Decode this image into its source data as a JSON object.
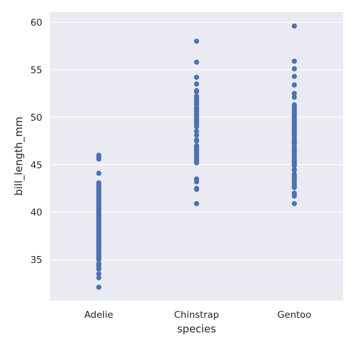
{
  "chart_data": {
    "type": "scatter",
    "xlabel": "species",
    "ylabel": "bill_length_mm",
    "categories": [
      "Adelie",
      "Chinstrap",
      "Gentoo"
    ],
    "ylim": [
      30.7,
      61.1
    ],
    "yticks": [
      35,
      40,
      45,
      50,
      55,
      60
    ],
    "grid": true,
    "point_color": "#4c72b0",
    "plot_background": "#eaeaf2",
    "series": [
      {
        "category": "Adelie",
        "values": [
          32.1,
          33.1,
          33.5,
          34.0,
          34.1,
          34.4,
          34.5,
          34.6,
          35.0,
          35.1,
          35.2,
          35.3,
          35.5,
          35.6,
          35.7,
          35.9,
          36.0,
          36.2,
          36.3,
          36.4,
          36.5,
          36.6,
          36.7,
          36.8,
          36.9,
          37.0,
          37.2,
          37.3,
          37.5,
          37.6,
          37.7,
          37.8,
          37.9,
          38.1,
          38.2,
          38.3,
          38.5,
          38.6,
          38.7,
          38.8,
          38.9,
          39.0,
          39.1,
          39.2,
          39.3,
          39.5,
          39.6,
          39.7,
          39.8,
          40.0,
          40.2,
          40.3,
          40.5,
          40.6,
          40.7,
          40.8,
          40.9,
          41.0,
          41.1,
          41.3,
          41.4,
          41.5,
          41.6,
          41.8,
          42.0,
          42.1,
          42.2,
          42.3,
          42.5,
          42.7,
          42.8,
          42.9,
          43.1,
          44.1,
          45.6,
          45.8,
          46.0
        ]
      },
      {
        "category": "Chinstrap",
        "values": [
          40.9,
          42.4,
          42.5,
          43.2,
          43.5,
          45.2,
          45.4,
          45.5,
          45.6,
          45.7,
          45.9,
          46.0,
          46.1,
          46.2,
          46.4,
          46.5,
          46.6,
          46.7,
          46.8,
          46.9,
          47.0,
          47.5,
          47.6,
          48.1,
          48.5,
          49.0,
          49.2,
          49.3,
          49.5,
          49.6,
          49.7,
          49.8,
          50.0,
          50.1,
          50.2,
          50.3,
          50.5,
          50.6,
          50.7,
          50.8,
          50.9,
          51.0,
          51.3,
          51.4,
          51.5,
          51.7,
          51.9,
          52.0,
          52.2,
          52.7,
          52.8,
          53.5,
          54.2,
          55.8,
          58.0
        ]
      },
      {
        "category": "Gentoo",
        "values": [
          40.9,
          41.7,
          42.0,
          42.6,
          42.7,
          42.9,
          43.2,
          43.3,
          43.5,
          43.6,
          43.8,
          44.0,
          44.4,
          44.5,
          44.9,
          45.1,
          45.2,
          45.3,
          45.4,
          45.5,
          45.7,
          45.8,
          46.1,
          46.2,
          46.4,
          46.5,
          46.6,
          46.8,
          46.9,
          47.2,
          47.3,
          47.4,
          47.5,
          47.6,
          47.7,
          47.8,
          48.1,
          48.2,
          48.4,
          48.5,
          48.6,
          48.7,
          48.8,
          49.0,
          49.1,
          49.2,
          49.3,
          49.4,
          49.5,
          49.6,
          49.8,
          49.9,
          50.0,
          50.1,
          50.2,
          50.4,
          50.5,
          50.7,
          50.8,
          51.1,
          51.3,
          52.1,
          52.5,
          53.4,
          54.3,
          55.1,
          55.9,
          59.6
        ]
      }
    ]
  }
}
